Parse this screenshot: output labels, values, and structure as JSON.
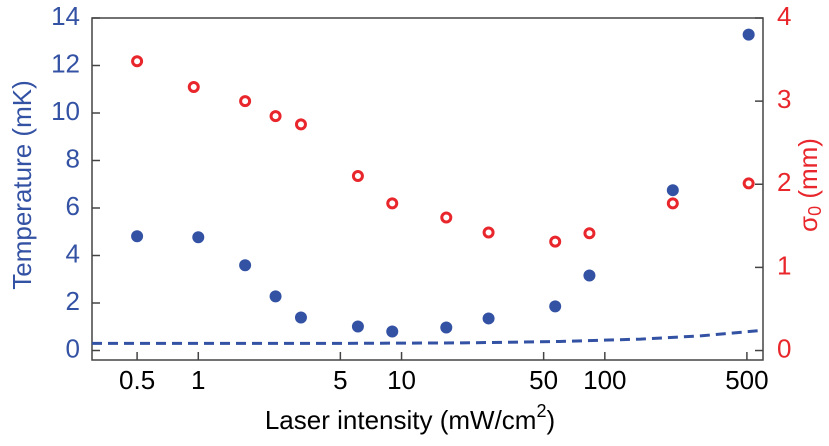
{
  "chart_data": {
    "type": "scatter",
    "xlabel_parts": [
      "Laser intensity (mW/cm",
      "2",
      ")"
    ],
    "ylabel": "Temperature (mK)",
    "y2label_parts": [
      "σ",
      "0",
      " (mm)"
    ],
    "xscale": "log",
    "xlim": [
      0.3,
      600
    ],
    "xticks": [
      0.5,
      1,
      5,
      10,
      50,
      100,
      500
    ],
    "ylim": [
      -0.4,
      14
    ],
    "yticks": [
      0,
      2,
      4,
      6,
      8,
      10,
      12,
      14
    ],
    "y2lim": [
      -0.114,
      4
    ],
    "y2ticks": [
      0,
      1,
      2,
      3,
      4
    ],
    "ycolor": "#3452a4",
    "y2color": "#e8262b",
    "series": [
      {
        "style": "filled",
        "color": "#3452a4",
        "x": [
          0.5,
          1,
          1.7,
          2.4,
          3.2,
          6.1,
          9.0,
          16.6,
          26.8,
          57,
          84,
          216,
          510
        ],
        "values": [
          4.81,
          4.77,
          3.59,
          2.28,
          1.39,
          1.01,
          0.8,
          0.97,
          1.35,
          1.86,
          3.16,
          6.75,
          13.3
        ]
      },
      {
        "style": "open",
        "color": "#e8262b",
        "axis": "y2",
        "x": [
          0.5,
          0.95,
          1.7,
          2.4,
          3.2,
          6.1,
          9.0,
          16.6,
          26.8,
          57,
          84,
          216,
          510
        ],
        "values": [
          3.48,
          3.17,
          3.0,
          2.82,
          2.72,
          2.1,
          1.77,
          1.6,
          1.42,
          1.31,
          1.41,
          1.77,
          2.01
        ]
      },
      {
        "style": "dashed",
        "color": "#3452a4",
        "x": [
          0.3,
          1,
          5,
          20,
          60,
          150,
          300,
          600
        ],
        "values": [
          0.3,
          0.3,
          0.3,
          0.32,
          0.38,
          0.48,
          0.62,
          0.85
        ]
      }
    ]
  }
}
